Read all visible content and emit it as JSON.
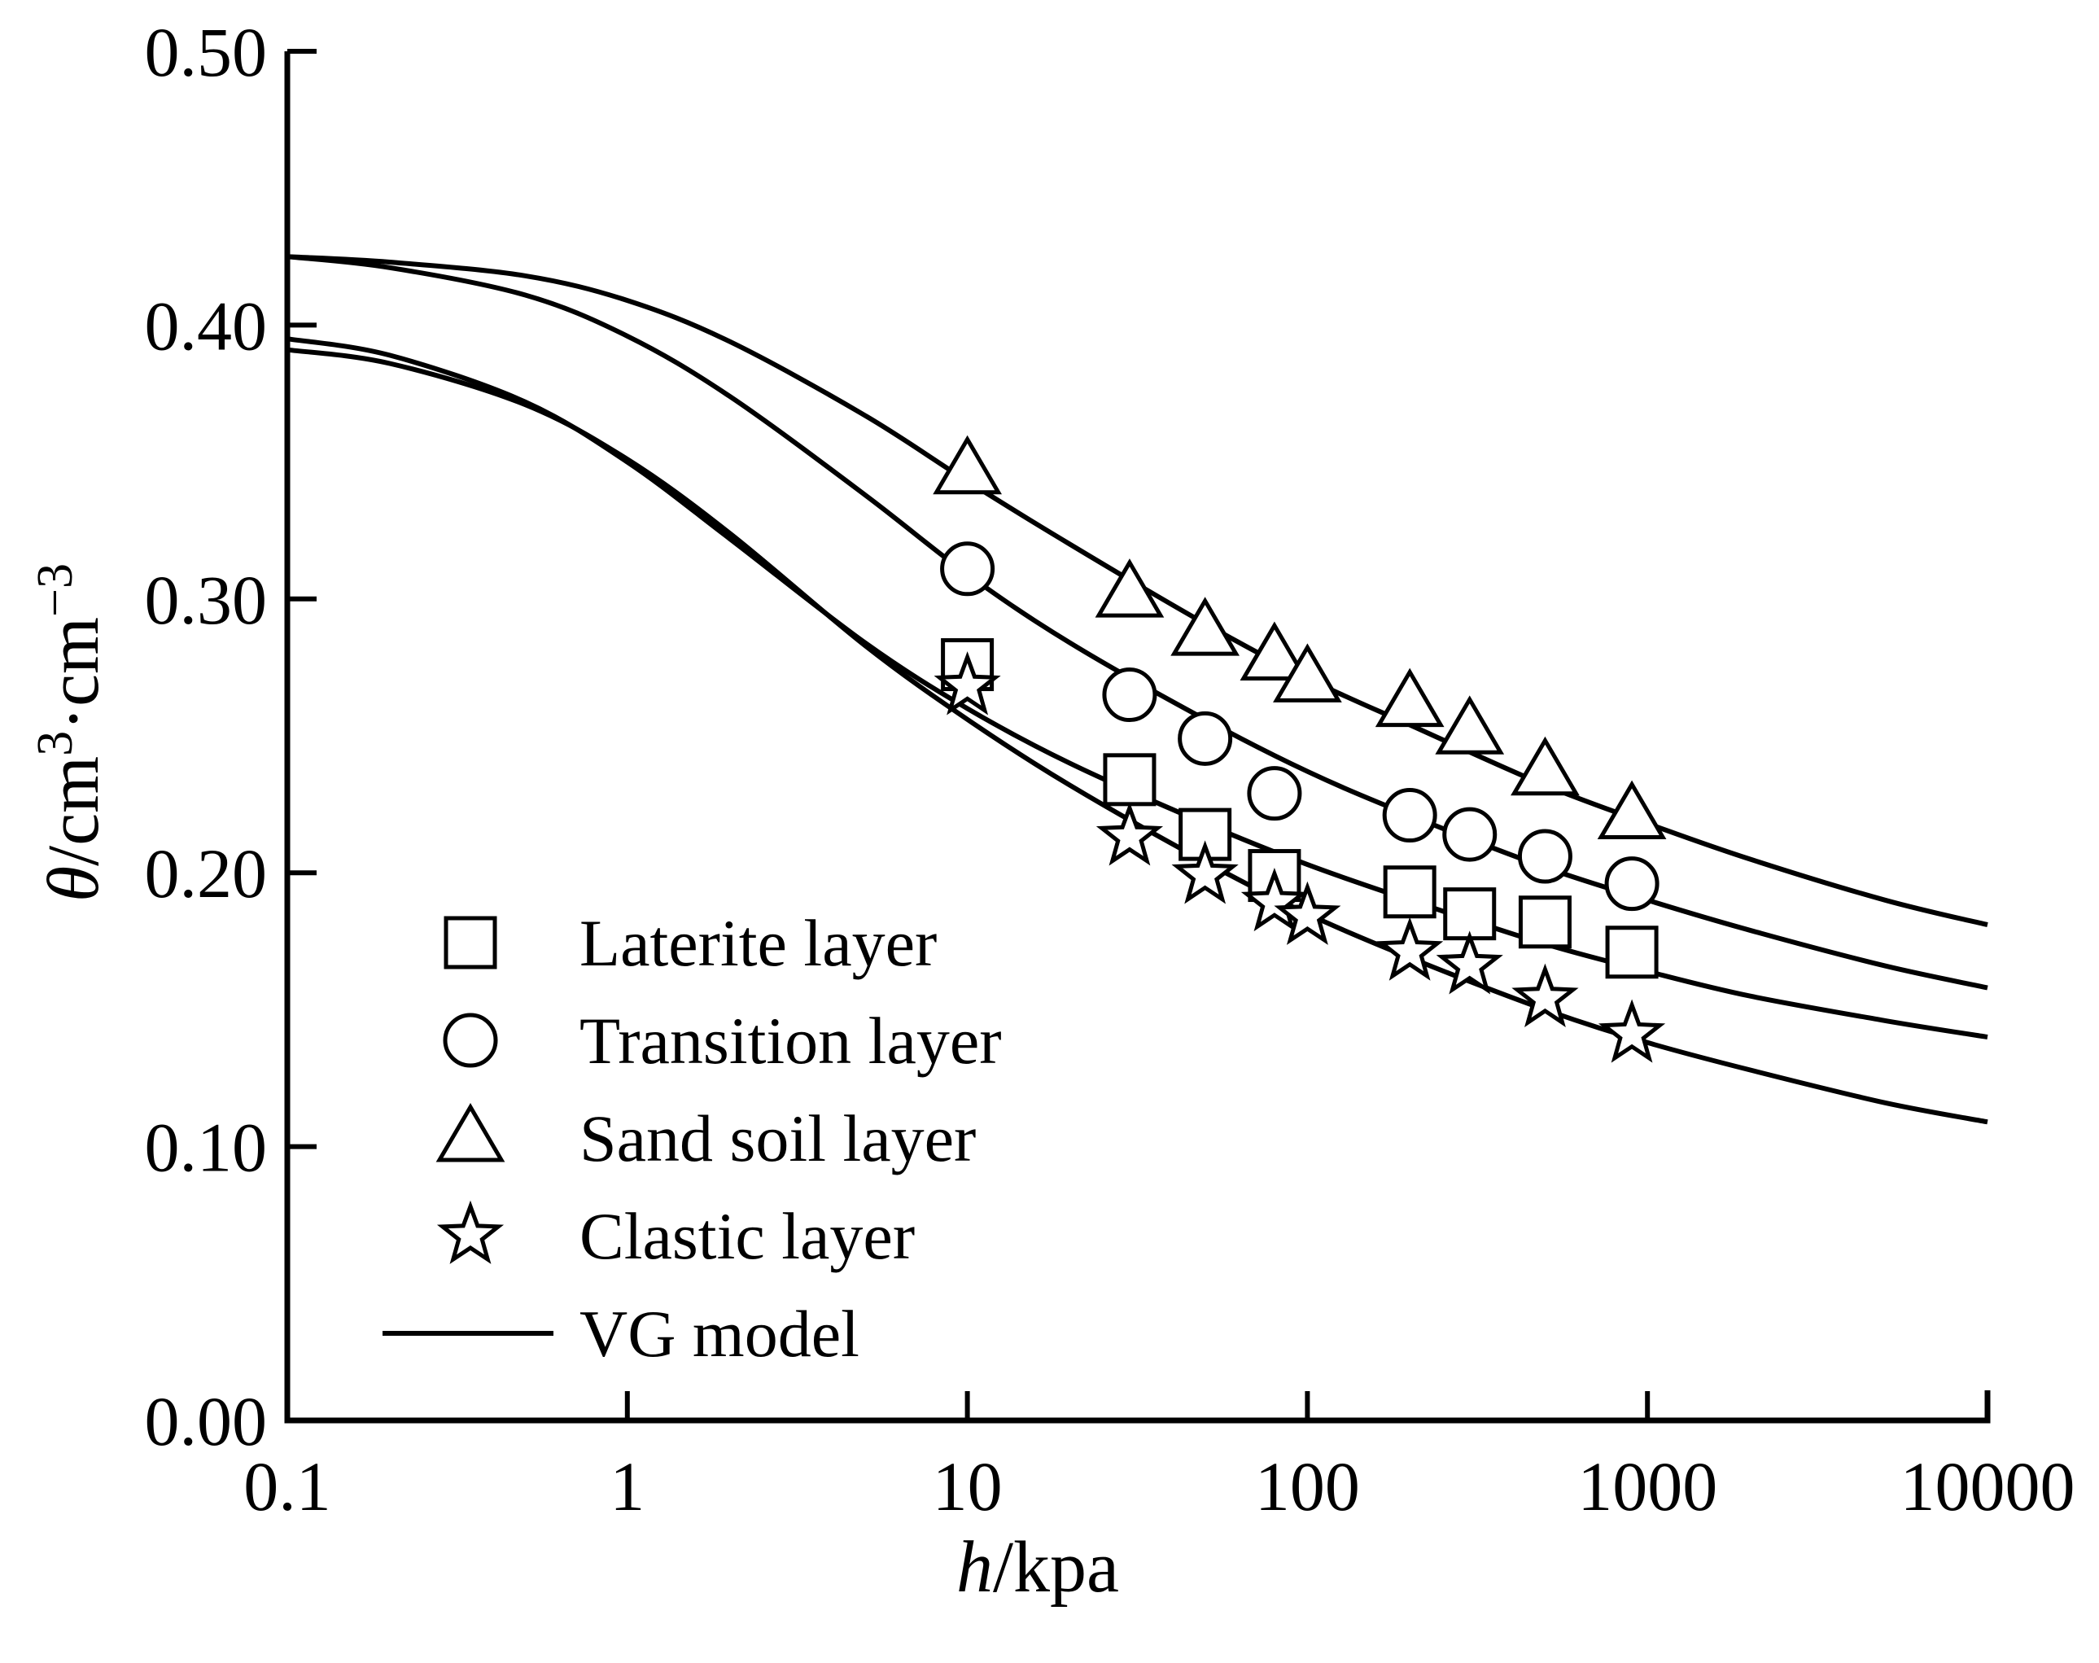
{
  "chart_data": {
    "type": "scatter",
    "title": "",
    "xlabel": "h/kpa",
    "ylabel": "θ/cm3·cm-3",
    "xlabel_parts": {
      "var": "h",
      "unit": "/kpa"
    },
    "ylabel_parts": {
      "var": "θ",
      "unit1": "/cm",
      "sup1": "3",
      "unit2": "·cm",
      "sup2": "−3"
    },
    "xscale": "log",
    "xlim": [
      0.1,
      10000
    ],
    "ylim": [
      0.0,
      0.5
    ],
    "xticks": [
      "0.1",
      "1",
      "10",
      "100",
      "1000",
      "10000"
    ],
    "xtick_values": [
      0.1,
      1,
      10,
      100,
      1000,
      10000
    ],
    "yticks": [
      "0.00",
      "0.10",
      "0.20",
      "0.30",
      "0.40",
      "0.50"
    ],
    "ytick_values": [
      0.0,
      0.1,
      0.2,
      0.3,
      0.4,
      0.5
    ],
    "grid": false,
    "legend_position": "lower-left",
    "series": [
      {
        "name": "Laterite layer",
        "marker": "square",
        "x": [
          10,
          30,
          50,
          80,
          200,
          300,
          500,
          900
        ],
        "y": [
          0.276,
          0.234,
          0.214,
          0.199,
          0.193,
          0.185,
          0.182,
          0.171
        ]
      },
      {
        "name": "Transition layer",
        "marker": "circle",
        "x": [
          10,
          30,
          50,
          80,
          200,
          300,
          500,
          900
        ],
        "y": [
          0.311,
          0.265,
          0.249,
          0.229,
          0.221,
          0.214,
          0.206,
          0.196
        ]
      },
      {
        "name": "Sand soil layer",
        "marker": "triangle",
        "x": [
          10,
          30,
          50,
          80,
          100,
          200,
          300,
          500,
          900
        ],
        "y": [
          0.347,
          0.302,
          0.288,
          0.279,
          0.271,
          0.262,
          0.252,
          0.237,
          0.221
        ]
      },
      {
        "name": "Clastic layer",
        "marker": "star",
        "x": [
          10,
          30,
          50,
          80,
          100,
          200,
          300,
          500,
          900
        ],
        "y": [
          0.268,
          0.213,
          0.199,
          0.189,
          0.184,
          0.171,
          0.166,
          0.154,
          0.141
        ]
      }
    ],
    "model_curves": [
      {
        "name": "Sand soil layer VG fit",
        "x": [
          0.1,
          0.2,
          0.5,
          1,
          2,
          5,
          10,
          20,
          50,
          100,
          200,
          500,
          1000,
          2000,
          5000,
          10000
        ],
        "y": [
          0.425,
          0.423,
          0.418,
          0.409,
          0.394,
          0.367,
          0.343,
          0.32,
          0.291,
          0.271,
          0.254,
          0.232,
          0.218,
          0.205,
          0.19,
          0.181
        ]
      },
      {
        "name": "Transition layer VG fit",
        "x": [
          0.1,
          0.2,
          0.5,
          1,
          2,
          5,
          10,
          20,
          50,
          100,
          200,
          500,
          1000,
          2000,
          5000,
          10000
        ],
        "y": [
          0.425,
          0.421,
          0.411,
          0.396,
          0.374,
          0.338,
          0.309,
          0.284,
          0.256,
          0.237,
          0.221,
          0.202,
          0.19,
          0.179,
          0.166,
          0.158
        ]
      },
      {
        "name": "Laterite layer VG fit",
        "x": [
          0.1,
          0.2,
          0.5,
          1,
          2,
          5,
          10,
          20,
          50,
          100,
          200,
          500,
          1000,
          2000,
          5000,
          10000
        ],
        "y": [
          0.395,
          0.389,
          0.372,
          0.35,
          0.322,
          0.284,
          0.26,
          0.24,
          0.218,
          0.203,
          0.19,
          0.174,
          0.164,
          0.155,
          0.146,
          0.14
        ]
      },
      {
        "name": "Clastic layer VG fit",
        "x": [
          0.1,
          0.2,
          0.5,
          1,
          2,
          5,
          10,
          20,
          50,
          100,
          200,
          500,
          1000,
          2000,
          5000,
          10000
        ],
        "y": [
          0.391,
          0.386,
          0.371,
          0.351,
          0.324,
          0.283,
          0.256,
          0.232,
          0.204,
          0.185,
          0.169,
          0.15,
          0.138,
          0.128,
          0.116,
          0.109
        ]
      }
    ],
    "legend": [
      {
        "label": "Laterite layer",
        "marker": "square"
      },
      {
        "label": "Transition layer",
        "marker": "circle"
      },
      {
        "label": "Sand soil layer",
        "marker": "triangle"
      },
      {
        "label": "Clastic layer",
        "marker": "star"
      },
      {
        "label": "VG model",
        "marker": "line"
      }
    ]
  }
}
